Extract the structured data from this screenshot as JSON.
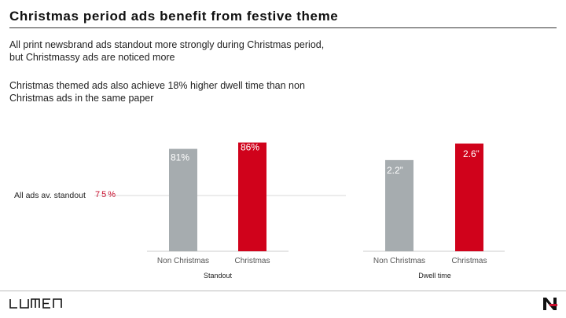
{
  "title": "Christmas period ads benefit from festive theme",
  "paragraph1": "All print newsbrand ads standout more strongly during Christmas period, but Christmassy ads are noticed more",
  "paragraph2": "Christmas themed ads also achieve 18% higher dwell time than non Christmas ads in the same paper",
  "reference_line": {
    "label": "All ads av. standout",
    "value_label": "75%",
    "value": 75
  },
  "colors": {
    "grey": "#a6acaf",
    "red": "#d0021b",
    "accent_text": "#c8102e"
  },
  "logos": {
    "left": "lumen-logo",
    "right": "newsworks-logo"
  },
  "chart_data": [
    {
      "type": "bar",
      "title": "",
      "xlabel": "Standout",
      "ylabel": "",
      "categories": [
        "Non Christmas",
        "Christmas"
      ],
      "values": [
        81,
        86
      ],
      "data_labels": [
        "81%",
        "86%"
      ],
      "colors": [
        "#a6acaf",
        "#d0021b"
      ],
      "ylim": [
        0,
        100
      ],
      "reference_value": 75
    },
    {
      "type": "bar",
      "title": "",
      "xlabel": "Dwell time",
      "ylabel": "",
      "categories": [
        "Non Christmas",
        "Christmas"
      ],
      "values": [
        2.2,
        2.6
      ],
      "data_labels": [
        "2.2”",
        "2.6”"
      ],
      "colors": [
        "#a6acaf",
        "#d0021b"
      ],
      "ylim": [
        0,
        3.05
      ]
    }
  ]
}
